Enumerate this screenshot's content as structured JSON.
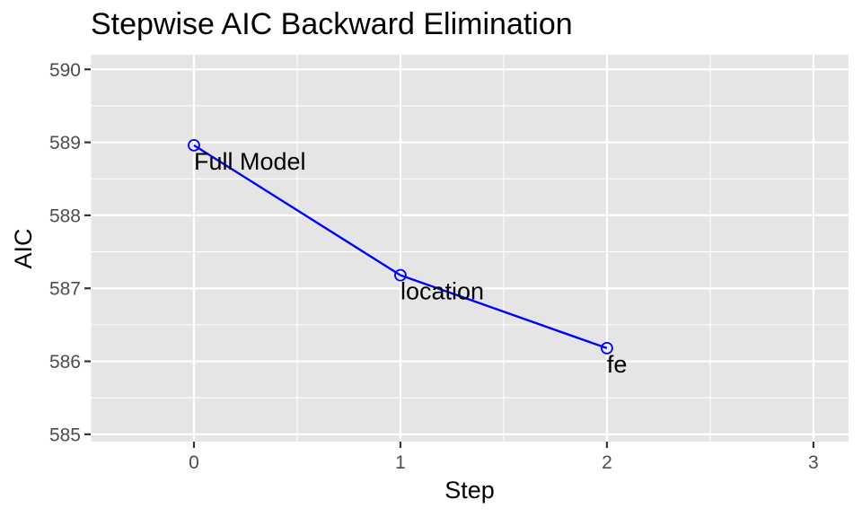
{
  "chart_data": {
    "type": "line",
    "title": "Stepwise AIC Backward Elimination",
    "xlabel": "Step",
    "ylabel": "AIC",
    "x": [
      0,
      1,
      2
    ],
    "y": [
      588.96,
      587.18,
      586.18
    ],
    "point_labels": [
      "Full Model",
      "location",
      "fe"
    ],
    "xlim": [
      -0.5,
      3.17
    ],
    "ylim": [
      584.9,
      590.2
    ],
    "x_ticks": [
      0,
      1,
      2,
      3
    ],
    "y_ticks": [
      585,
      586,
      587,
      588,
      589,
      590
    ],
    "grid": true,
    "style": {
      "line_color": "#0000ff",
      "panel_background": "#e5e5e5",
      "grid_color": "#ffffff"
    }
  }
}
